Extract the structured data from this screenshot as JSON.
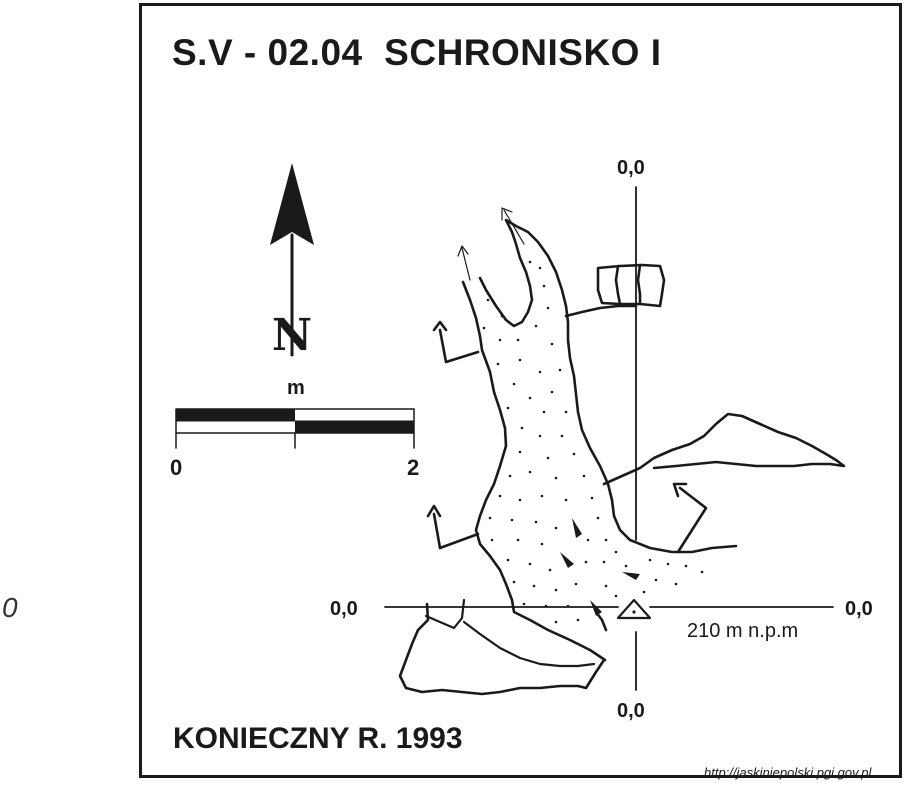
{
  "side_text": "0",
  "title": "S.V - 02.04  SCHRONISKO I",
  "author": "KONIECZNY R. 1993",
  "source_url": "http://jaskiniepolski.pgi.gov.pl",
  "north_label": "N",
  "scale": {
    "unit": "m",
    "start": "0",
    "end": "2"
  },
  "grid": {
    "top": "0,0",
    "bottom": "0,0",
    "left": "0,0",
    "right": "0,0"
  },
  "elevation_label": "210 m n.p.m",
  "colors": {
    "ink": "#1a1a1a",
    "paper": "#ffffff"
  }
}
